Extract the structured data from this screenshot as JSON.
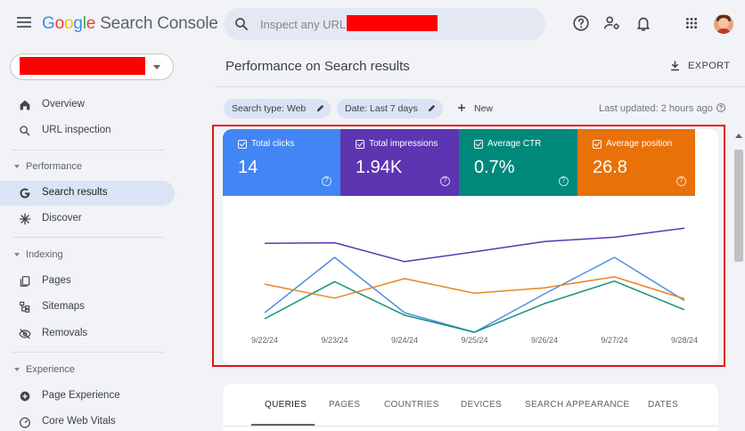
{
  "app": {
    "title_letters": [
      "G",
      "o",
      "o",
      "g",
      "l",
      "e"
    ],
    "title_rest": " Search Console"
  },
  "search": {
    "placeholder": "Inspect any URL in"
  },
  "sidebar": {
    "items": [
      {
        "label": "Overview",
        "icon": "home-icon"
      },
      {
        "label": "URL inspection",
        "icon": "magnifier-icon"
      },
      {
        "label": "Search results",
        "icon": "google-g-icon",
        "active": true
      },
      {
        "label": "Discover",
        "icon": "asterisk-icon"
      },
      {
        "label": "Pages",
        "icon": "pages-icon"
      },
      {
        "label": "Sitemaps",
        "icon": "sitemap-icon"
      },
      {
        "label": "Removals",
        "icon": "eye-off-icon"
      },
      {
        "label": "Page Experience",
        "icon": "plus-circle-icon"
      },
      {
        "label": "Core Web Vitals",
        "icon": "gauge-icon"
      }
    ],
    "sections": [
      "Performance",
      "Indexing",
      "Experience"
    ]
  },
  "main": {
    "title": "Performance on Search results",
    "export_label": "EXPORT",
    "filters": [
      {
        "label": "Search type: Web"
      },
      {
        "label": "Date: Last 7 days"
      }
    ],
    "new_label": "New",
    "last_updated": "Last updated: 2 hours ago"
  },
  "metrics": [
    {
      "label": "Total clicks",
      "value": "14",
      "color": "#4285f4"
    },
    {
      "label": "Total impressions",
      "value": "1.94K",
      "color": "#5e35b1"
    },
    {
      "label": "Average CTR",
      "value": "0.7%",
      "color": "#00897b"
    },
    {
      "label": "Average position",
      "value": "26.8",
      "color": "#e8710a"
    }
  ],
  "chart_data": {
    "type": "line",
    "categories": [
      "9/22/24",
      "9/23/24",
      "9/24/24",
      "9/25/24",
      "9/26/24",
      "9/27/24",
      "9/28/24"
    ],
    "series": [
      {
        "name": "Total clicks",
        "color": "#4a8fe0",
        "values": [
          0.02,
          0.93,
          0.02,
          -0.3,
          0.33,
          0.93,
          0.22
        ]
      },
      {
        "name": "Total impressions",
        "color": "#5e35b1",
        "values": [
          1.16,
          1.17,
          0.86,
          1.02,
          1.19,
          1.26,
          1.41
        ]
      },
      {
        "name": "Average CTR",
        "color": "#13917f",
        "values": [
          -0.08,
          0.53,
          -0.02,
          -0.3,
          0.17,
          0.54,
          0.07
        ]
      },
      {
        "name": "Average position",
        "color": "#e8861f",
        "values": [
          0.49,
          0.26,
          0.58,
          0.34,
          0.43,
          0.61,
          0.25
        ]
      }
    ],
    "ylim": [
      -0.46,
      1.72
    ],
    "grid": false,
    "legend": "top"
  },
  "tabs": [
    {
      "label": "QUERIES",
      "active": true
    },
    {
      "label": "PAGES"
    },
    {
      "label": "COUNTRIES"
    },
    {
      "label": "DEVICES"
    },
    {
      "label": "SEARCH APPEARANCE"
    },
    {
      "label": "DATES"
    }
  ]
}
